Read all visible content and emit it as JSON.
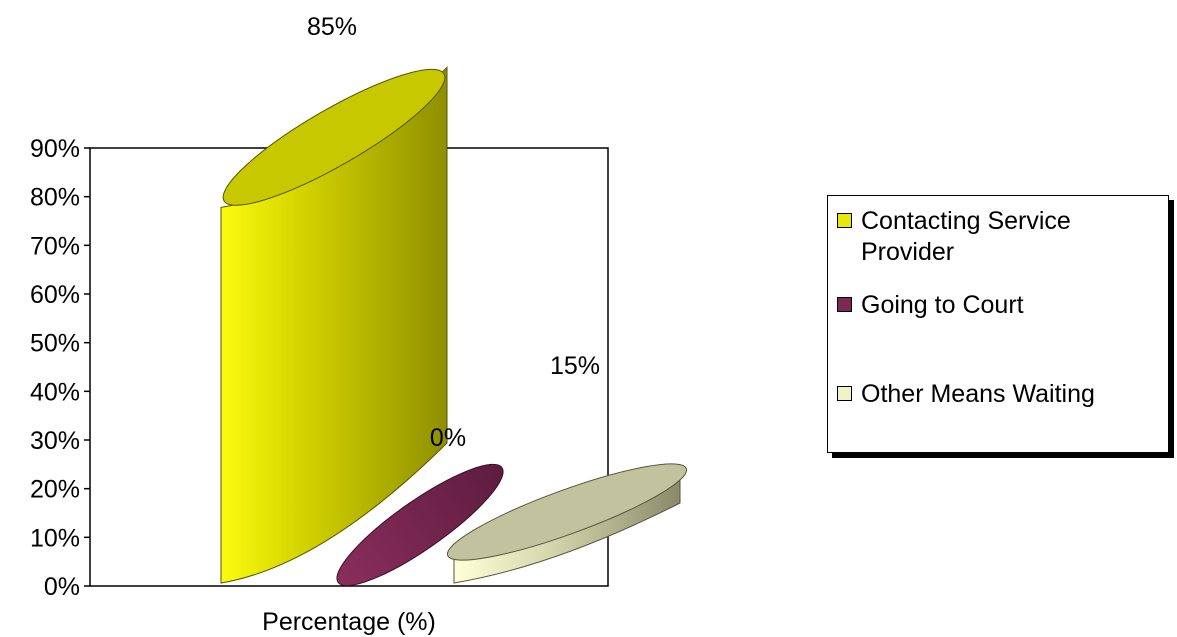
{
  "chart_data": {
    "type": "bar",
    "xlabel": "Percentage (%)",
    "ylabel": "",
    "ylim": [
      0,
      90
    ],
    "yticks": [
      "0%",
      "10%",
      "20%",
      "30%",
      "40%",
      "50%",
      "60%",
      "70%",
      "80%",
      "90%"
    ],
    "grid": false,
    "legend_position": "right",
    "series": [
      {
        "name": "Contacting Service Provider",
        "value": 85,
        "label": "85%",
        "color": "#e8e800"
      },
      {
        "name": "Going to Court",
        "value": 0,
        "label": "0%",
        "color": "#7a2a52"
      },
      {
        "name": "Other Means Waiting",
        "value": 15,
        "label": "15%",
        "color": "#f2f2c8"
      }
    ]
  },
  "legend": {
    "items": [
      {
        "label_line1": "Contacting Service",
        "label_line2": "Provider",
        "color": "#e8e800"
      },
      {
        "label_line1": "Going to Court",
        "label_line2": "",
        "color": "#7a2a52"
      },
      {
        "label_line1": "Other Means Waiting",
        "label_line2": "",
        "color": "#f2f2c8"
      }
    ]
  }
}
